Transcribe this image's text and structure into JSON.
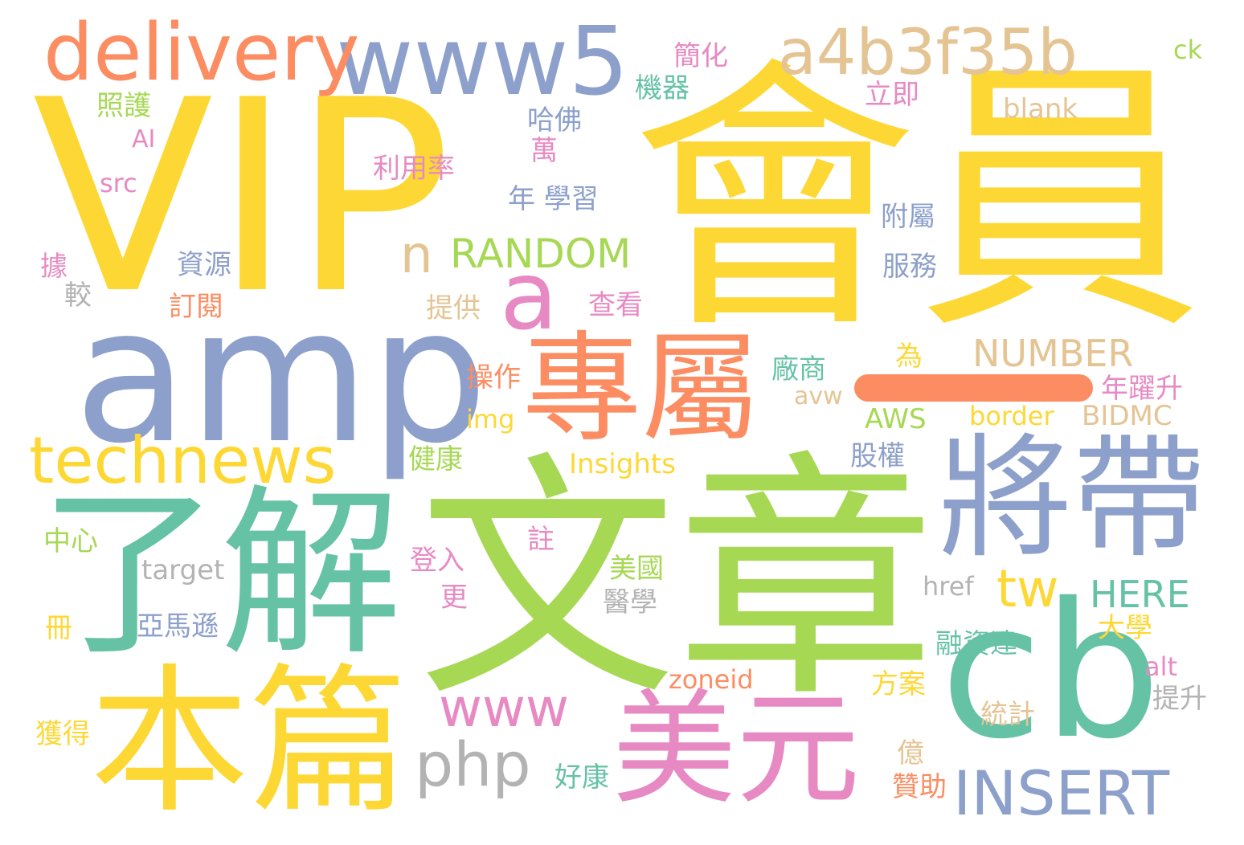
{
  "palette": {
    "yellow": "#FDD835",
    "green": "#A6D854",
    "teal": "#66C2A5",
    "blue": "#8DA0CB",
    "orange": "#FC8D62",
    "pink": "#E78AC3",
    "tan": "#E5C494",
    "gray": "#B3B3B3"
  },
  "separator_bar_color": "#FC8D62",
  "words": [
    {
      "text": "VIP",
      "color": "#FDD835"
    },
    {
      "text": "會員",
      "color": "#FDD835"
    },
    {
      "text": "文章",
      "color": "#A6D854"
    },
    {
      "text": "amp",
      "color": "#8DA0CB"
    },
    {
      "text": "了解",
      "color": "#66C2A5"
    },
    {
      "text": "本篇",
      "color": "#FDD835"
    },
    {
      "text": "專屬",
      "color": "#FC8D62"
    },
    {
      "text": "將帶",
      "color": "#8DA0CB"
    },
    {
      "text": "cb",
      "color": "#66C2A5"
    },
    {
      "text": "美元",
      "color": "#E78AC3"
    },
    {
      "text": "www5",
      "color": "#8DA0CB"
    },
    {
      "text": "delivery",
      "color": "#FC8D62"
    },
    {
      "text": "a4b3f35b",
      "color": "#E5C494"
    },
    {
      "text": "technews",
      "color": "#FDD835"
    },
    {
      "text": "a",
      "color": "#E78AC3"
    },
    {
      "text": "n",
      "color": "#E5C494"
    },
    {
      "text": "RANDOM",
      "color": "#A6D854"
    },
    {
      "text": "NUMBER",
      "color": "#E5C494"
    },
    {
      "text": "www",
      "color": "#E78AC3"
    },
    {
      "text": "php",
      "color": "#B3B3B3"
    },
    {
      "text": "INSERT",
      "color": "#8DA0CB"
    },
    {
      "text": "tw",
      "color": "#FDD835"
    },
    {
      "text": "HERE",
      "color": "#66C2A5"
    },
    {
      "text": "blank",
      "color": "#E5C494"
    },
    {
      "text": "ck",
      "color": "#A6D854"
    },
    {
      "text": "簡化",
      "color": "#E78AC3"
    },
    {
      "text": "機器",
      "color": "#66C2A5"
    },
    {
      "text": "立即",
      "color": "#E78AC3"
    },
    {
      "text": "照護",
      "color": "#A6D854"
    },
    {
      "text": "AI",
      "color": "#E78AC3"
    },
    {
      "text": "src",
      "color": "#E78AC3"
    },
    {
      "text": "哈佛",
      "color": "#8DA0CB"
    },
    {
      "text": "萬",
      "color": "#E78AC3"
    },
    {
      "text": "利用率",
      "color": "#E78AC3"
    },
    {
      "text": "年 學習",
      "color": "#8DA0CB"
    },
    {
      "text": "附屬",
      "color": "#8DA0CB"
    },
    {
      "text": "服務",
      "color": "#8DA0CB"
    },
    {
      "text": "據",
      "color": "#E78AC3"
    },
    {
      "text": "資源",
      "color": "#8DA0CB"
    },
    {
      "text": "較",
      "color": "#B3B3B3"
    },
    {
      "text": "訂閱",
      "color": "#FC8D62"
    },
    {
      "text": "提供",
      "color": "#E5C494"
    },
    {
      "text": "查看",
      "color": "#E78AC3"
    },
    {
      "text": "為",
      "color": "#FDD835"
    },
    {
      "text": "廠商",
      "color": "#66C2A5"
    },
    {
      "text": "操作",
      "color": "#FC8D62"
    },
    {
      "text": "年躍升",
      "color": "#E78AC3"
    },
    {
      "text": "avw",
      "color": "#E5C494"
    },
    {
      "text": "img",
      "color": "#FDD835"
    },
    {
      "text": "AWS",
      "color": "#A6D854"
    },
    {
      "text": "border",
      "color": "#FDD835"
    },
    {
      "text": "BIDMC",
      "color": "#E5C494"
    },
    {
      "text": "健康",
      "color": "#A6D854"
    },
    {
      "text": "Insights",
      "color": "#FDD835"
    },
    {
      "text": "股權",
      "color": "#8DA0CB"
    },
    {
      "text": "中心",
      "color": "#A6D854"
    },
    {
      "text": "註",
      "color": "#E78AC3"
    },
    {
      "text": "target",
      "color": "#B3B3B3"
    },
    {
      "text": "登入",
      "color": "#E78AC3"
    },
    {
      "text": "更",
      "color": "#E78AC3"
    },
    {
      "text": "美國",
      "color": "#A6D854"
    },
    {
      "text": "醫學",
      "color": "#B3B3B3"
    },
    {
      "text": "href",
      "color": "#B3B3B3"
    },
    {
      "text": "冊",
      "color": "#FDD835"
    },
    {
      "text": "亞馬遜",
      "color": "#8DA0CB"
    },
    {
      "text": "融資達",
      "color": "#66C2A5"
    },
    {
      "text": "大學",
      "color": "#FDD835"
    },
    {
      "text": "alt",
      "color": "#E78AC3"
    },
    {
      "text": "zoneid",
      "color": "#FC8D62"
    },
    {
      "text": "方案",
      "color": "#FDD835"
    },
    {
      "text": "提升",
      "color": "#B3B3B3"
    },
    {
      "text": "統計",
      "color": "#E5C494"
    },
    {
      "text": "獲得",
      "color": "#FDD835"
    },
    {
      "text": "好康",
      "color": "#66C2A5"
    },
    {
      "text": "億",
      "color": "#E5C494"
    },
    {
      "text": "贊助",
      "color": "#FC8D62"
    }
  ]
}
